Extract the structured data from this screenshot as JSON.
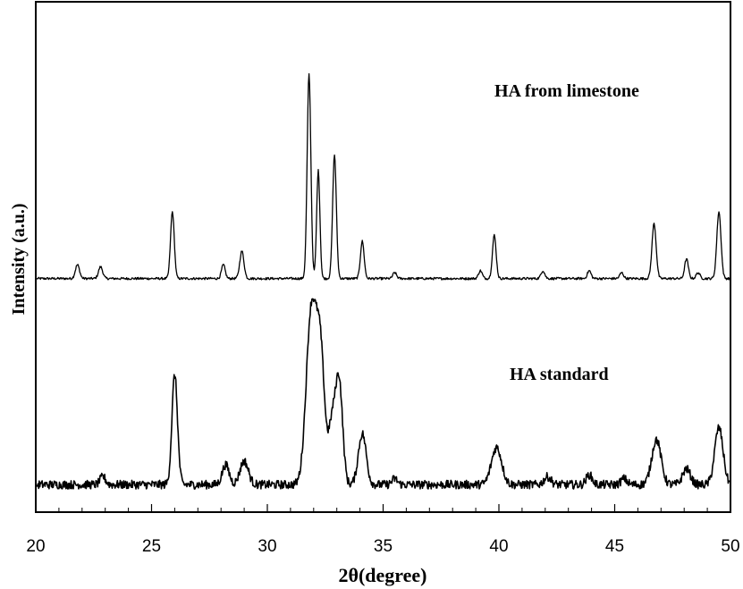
{
  "chart_data": {
    "type": "line",
    "title": "",
    "xlabel": "2θ(degree)",
    "ylabel": "Intensity (a.u.)",
    "xlim": [
      20,
      50
    ],
    "ylim": [
      0,
      2.6
    ],
    "xticks": [
      20,
      25,
      30,
      35,
      40,
      45,
      50
    ],
    "yticks_shown": false,
    "grid": false,
    "legend": "none",
    "line_color": "#000000",
    "annotations": [
      "HA from limestone",
      "HA standard"
    ],
    "series": [
      {
        "name": "HA from limestone",
        "baseline": 1.19,
        "peaks": [
          {
            "x": 21.8,
            "height": 0.07,
            "width": 0.09
          },
          {
            "x": 22.8,
            "height": 0.06,
            "width": 0.09
          },
          {
            "x": 25.9,
            "height": 0.34,
            "width": 0.08
          },
          {
            "x": 28.1,
            "height": 0.07,
            "width": 0.08
          },
          {
            "x": 28.9,
            "height": 0.14,
            "width": 0.09
          },
          {
            "x": 31.8,
            "height": 1.04,
            "width": 0.08
          },
          {
            "x": 32.2,
            "height": 0.55,
            "width": 0.07
          },
          {
            "x": 32.9,
            "height": 0.63,
            "width": 0.08
          },
          {
            "x": 34.1,
            "height": 0.19,
            "width": 0.08
          },
          {
            "x": 35.5,
            "height": 0.03,
            "width": 0.08
          },
          {
            "x": 39.2,
            "height": 0.04,
            "width": 0.08
          },
          {
            "x": 39.8,
            "height": 0.22,
            "width": 0.08
          },
          {
            "x": 41.9,
            "height": 0.04,
            "width": 0.08
          },
          {
            "x": 43.9,
            "height": 0.04,
            "width": 0.08
          },
          {
            "x": 45.3,
            "height": 0.03,
            "width": 0.08
          },
          {
            "x": 46.7,
            "height": 0.28,
            "width": 0.09
          },
          {
            "x": 48.1,
            "height": 0.1,
            "width": 0.08
          },
          {
            "x": 48.6,
            "height": 0.03,
            "width": 0.08
          },
          {
            "x": 49.5,
            "height": 0.34,
            "width": 0.09
          }
        ]
      },
      {
        "name": "HA standard",
        "baseline": 0.14,
        "peaks": [
          {
            "x": 22.9,
            "height": 0.04,
            "width": 0.12
          },
          {
            "x": 26.0,
            "height": 0.56,
            "width": 0.12
          },
          {
            "x": 28.2,
            "height": 0.1,
            "width": 0.15
          },
          {
            "x": 29.0,
            "height": 0.12,
            "width": 0.18
          },
          {
            "x": 31.9,
            "height": 0.88,
            "width": 0.22
          },
          {
            "x": 32.3,
            "height": 0.62,
            "width": 0.18
          },
          {
            "x": 32.8,
            "height": 0.3,
            "width": 0.15
          },
          {
            "x": 33.1,
            "height": 0.52,
            "width": 0.15
          },
          {
            "x": 34.1,
            "height": 0.26,
            "width": 0.17
          },
          {
            "x": 35.5,
            "height": 0.03,
            "width": 0.12
          },
          {
            "x": 39.9,
            "height": 0.19,
            "width": 0.22
          },
          {
            "x": 42.1,
            "height": 0.04,
            "width": 0.15
          },
          {
            "x": 43.9,
            "height": 0.05,
            "width": 0.13
          },
          {
            "x": 45.4,
            "height": 0.03,
            "width": 0.13
          },
          {
            "x": 46.8,
            "height": 0.23,
            "width": 0.2
          },
          {
            "x": 48.1,
            "height": 0.08,
            "width": 0.17
          },
          {
            "x": 49.5,
            "height": 0.29,
            "width": 0.18
          }
        ]
      }
    ]
  }
}
